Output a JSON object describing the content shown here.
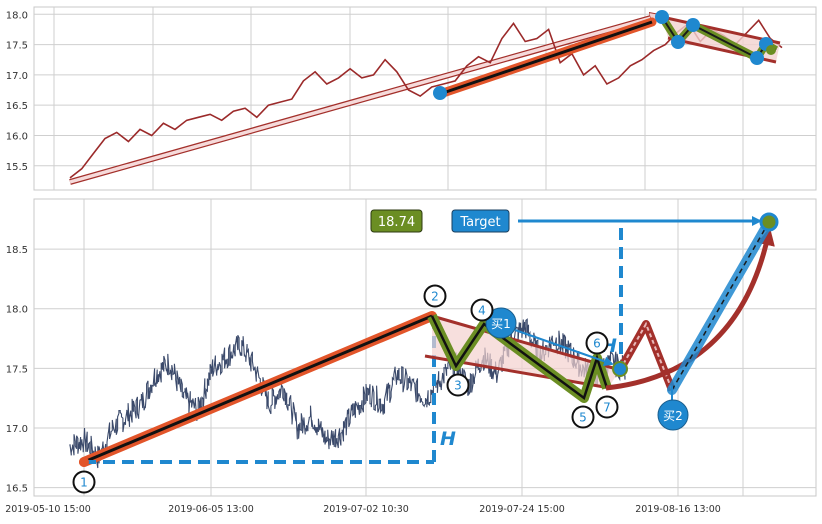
{
  "chart_data": [
    {
      "type": "line",
      "panel": "overview",
      "ylim": [
        15.1,
        18.12
      ],
      "yticks": [
        "15.5",
        "16.0",
        "16.5",
        "17.0",
        "17.5",
        "18.0"
      ],
      "grid": true,
      "series": [
        {
          "color": "#9b2a2a",
          "values": [
            15.3,
            15.45,
            15.7,
            15.95,
            16.05,
            15.9,
            16.1,
            16.0,
            16.2,
            16.1,
            16.25,
            16.3,
            16.35,
            16.25,
            16.4,
            16.45,
            16.3,
            16.5,
            16.55,
            16.6,
            16.9,
            17.05,
            16.85,
            16.95,
            17.1,
            16.95,
            17.0,
            17.25,
            17.05,
            16.75,
            16.65,
            16.8,
            16.85,
            16.9,
            17.15,
            17.3,
            17.2,
            17.6,
            17.85,
            17.55,
            17.6,
            17.75,
            17.2,
            17.35,
            17.0,
            17.15,
            16.85,
            16.95,
            17.15,
            17.25,
            17.4,
            17.5,
            17.7,
            17.85,
            17.55,
            17.75,
            17.65,
            17.5,
            17.7,
            17.9,
            17.6,
            17.45
          ]
        }
      ]
    },
    {
      "type": "line",
      "panel": "pattern",
      "ylim": [
        16.43,
        18.92
      ],
      "yticks": [
        "16.5",
        "17.0",
        "17.5",
        "18.0",
        "18.5"
      ],
      "xticks": [
        "2019-05-10 15:00",
        "2019-06-05 13:00",
        "2019-07-02 10:30",
        "2019-07-24 15:00",
        "2019-08-16 13:00"
      ],
      "grid": true,
      "series": [
        {
          "color": "#3b4a6b",
          "values": [
            16.85,
            16.9,
            16.75,
            17.0,
            17.1,
            17.2,
            17.45,
            17.55,
            17.25,
            17.15,
            17.5,
            17.6,
            17.7,
            17.5,
            17.2,
            17.35,
            17.0,
            17.1,
            16.9,
            16.95,
            17.15,
            17.3,
            17.2,
            17.45,
            17.35,
            17.25,
            17.4,
            17.55,
            17.35,
            17.6,
            17.45,
            17.75,
            17.85,
            17.6,
            17.75,
            17.65,
            17.5,
            17.45,
            17.55,
            17.5
          ]
        }
      ],
      "pivot_points": [
        {
          "label": "1",
          "value": 16.72
        },
        {
          "label": "2",
          "value": 17.96
        },
        {
          "label": "3",
          "value": 17.52
        },
        {
          "label": "4",
          "value": 17.85
        },
        {
          "label": "5",
          "value": 17.27
        },
        {
          "label": "6",
          "value": 17.56
        },
        {
          "label": "7",
          "value": 17.35
        }
      ],
      "annotations": {
        "price_badge": "18.74",
        "target_label": "Target",
        "height_label": "H",
        "buy1_label": "买1",
        "buy2_label": "买2"
      }
    }
  ],
  "colors": {
    "grid": "#cfcfcf",
    "price_top": "#9b2a2a",
    "price_bottom": "#3b4a6b",
    "trend_orange": "#e2552a",
    "trend_red": "#a3302b",
    "zigzag_olive": "#6b8e23",
    "marker_blue": "#1f88cf",
    "projection_pink": "#e8b8b8",
    "badge_green": "#6b8e23"
  }
}
